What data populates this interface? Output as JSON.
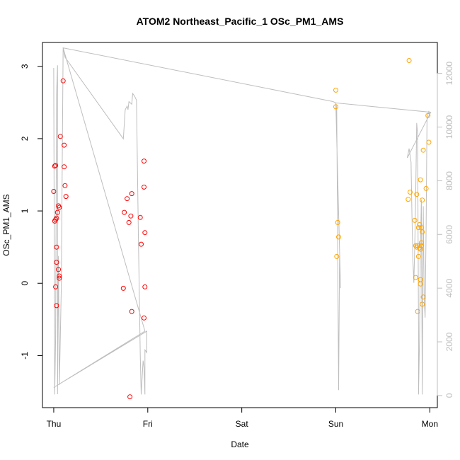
{
  "chart_data": {
    "type": "scatter",
    "title": "ATOM2 Northeast_Pacific_1 OSc_PM1_AMS",
    "xlabel": "Date",
    "ylabel": "OSc_PM1_AMS",
    "xlim": [
      -0.12,
      4.08
    ],
    "ylim": [
      -1.72,
      3.33
    ],
    "x_ticks": [
      {
        "value": 0,
        "label": "Thu"
      },
      {
        "value": 1,
        "label": "Fri"
      },
      {
        "value": 2,
        "label": "Sat"
      },
      {
        "value": 3,
        "label": "Sun"
      },
      {
        "value": 4,
        "label": "Mon"
      }
    ],
    "y_ticks": [
      -1,
      0,
      1,
      2,
      3
    ],
    "y2_ticks": [
      0,
      2000,
      4000,
      6000,
      8000,
      10000,
      12000
    ],
    "y2_lim": [
      -450,
      13150
    ],
    "grid": false,
    "colors": {
      "series_red": "#ff0000",
      "series_orange": "#ffa500",
      "line_gray": "#bebebe",
      "axis": "#000000"
    },
    "series": [
      {
        "color": "#ff0000",
        "points": [
          [
            0.0,
            1.27
          ],
          [
            0.01,
            0.86
          ],
          [
            0.02,
            0.88
          ],
          [
            0.03,
            0.9
          ],
          [
            0.01,
            1.62
          ],
          [
            0.02,
            1.63
          ],
          [
            0.03,
            0.5
          ],
          [
            0.03,
            0.29
          ],
          [
            0.02,
            -0.05
          ],
          [
            0.03,
            -0.31
          ],
          [
            0.04,
            0.98
          ],
          [
            0.05,
            1.07
          ],
          [
            0.06,
            1.05
          ],
          [
            0.05,
            0.19
          ],
          [
            0.06,
            0.1
          ],
          [
            0.06,
            0.07
          ],
          [
            0.07,
            2.03
          ],
          [
            0.1,
            2.8
          ],
          [
            0.11,
            1.91
          ],
          [
            0.11,
            1.61
          ],
          [
            0.12,
            1.35
          ],
          [
            0.13,
            1.2
          ],
          [
            0.75,
            0.98
          ],
          [
            0.74,
            -0.07
          ],
          [
            0.78,
            1.17
          ],
          [
            0.8,
            0.84
          ],
          [
            0.82,
            0.93
          ],
          [
            0.83,
            1.24
          ],
          [
            0.83,
            -0.39
          ],
          [
            0.81,
            -1.57
          ],
          [
            0.92,
            0.91
          ],
          [
            0.93,
            0.54
          ],
          [
            0.96,
            1.69
          ],
          [
            0.96,
            1.33
          ],
          [
            0.97,
            0.7
          ],
          [
            0.97,
            -0.05
          ],
          [
            0.96,
            -0.48
          ]
        ]
      },
      {
        "color": "#ffa500",
        "points": [
          [
            3.0,
            2.67
          ],
          [
            3.0,
            2.44
          ],
          [
            3.02,
            0.84
          ],
          [
            3.03,
            0.64
          ],
          [
            3.01,
            0.37
          ],
          [
            3.77,
            1.16
          ],
          [
            3.78,
            3.08
          ],
          [
            3.79,
            1.26
          ],
          [
            3.84,
            0.87
          ],
          [
            3.85,
            0.52
          ],
          [
            3.86,
            1.23
          ],
          [
            3.86,
            0.5
          ],
          [
            3.87,
            0.52
          ],
          [
            3.85,
            0.08
          ],
          [
            3.87,
            -0.39
          ],
          [
            3.88,
            0.37
          ],
          [
            3.88,
            0.77
          ],
          [
            3.89,
            0.81
          ],
          [
            3.89,
            0.49
          ],
          [
            3.9,
            0.47
          ],
          [
            3.9,
            1.43
          ],
          [
            3.9,
            0.05
          ],
          [
            3.9,
            -0.01
          ],
          [
            3.91,
            0.77
          ],
          [
            3.91,
            0.56
          ],
          [
            3.91,
            0.52
          ],
          [
            3.92,
            1.15
          ],
          [
            3.92,
            0.71
          ],
          [
            3.93,
            1.84
          ],
          [
            3.93,
            -0.19
          ],
          [
            3.92,
            -0.29
          ],
          [
            3.96,
            1.31
          ],
          [
            3.98,
            2.32
          ],
          [
            3.99,
            1.95
          ]
        ]
      }
    ],
    "line_series": {
      "axis": "right",
      "color": "#bebebe",
      "points": [
        [
          0.0,
          12200
        ],
        [
          0.01,
          40
        ],
        [
          0.02,
          2150
        ],
        [
          0.03,
          11200
        ],
        [
          0.04,
          12300
        ],
        [
          0.04,
          50
        ],
        [
          0.05,
          5200
        ],
        [
          0.06,
          400
        ],
        [
          0.08,
          4000
        ],
        [
          0.1,
          12950
        ],
        [
          0.12,
          12600
        ],
        [
          0.74,
          9560
        ],
        [
          0.76,
          10640
        ],
        [
          0.78,
          10780
        ],
        [
          0.79,
          10650
        ],
        [
          0.8,
          10950
        ],
        [
          0.83,
          10850
        ],
        [
          0.84,
          11250
        ],
        [
          0.86,
          11150
        ],
        [
          0.88,
          11000
        ],
        [
          0.9,
          6000
        ],
        [
          0.92,
          1500
        ],
        [
          0.93,
          40
        ],
        [
          0.95,
          1300
        ],
        [
          0.96,
          1050
        ],
        [
          0.97,
          40
        ],
        [
          0.97,
          1700
        ],
        [
          0.99,
          1600
        ],
        [
          0.99,
          2400
        ],
        [
          0.0,
          300
        ],
        [
          0.97,
          2400
        ],
        [
          0.1,
          12950
        ],
        [
          2.97,
          10950
        ],
        [
          3.0,
          10900
        ],
        [
          3.01,
          10700
        ],
        [
          3.03,
          200
        ],
        [
          3.04,
          5200
        ],
        [
          3.05,
          4000
        ],
        [
          3.0,
          10900
        ],
        [
          4.01,
          10550
        ],
        [
          3.76,
          8850
        ],
        [
          3.78,
          9200
        ],
        [
          3.8,
          8700
        ],
        [
          3.81,
          6700
        ],
        [
          3.82,
          5000
        ],
        [
          3.83,
          4200
        ],
        [
          3.84,
          5600
        ],
        [
          3.85,
          7500
        ],
        [
          3.86,
          10150
        ],
        [
          3.87,
          9750
        ],
        [
          3.88,
          2400
        ],
        [
          3.88,
          40
        ],
        [
          3.89,
          2100
        ],
        [
          3.9,
          5600
        ],
        [
          3.91,
          7300
        ],
        [
          3.92,
          40
        ],
        [
          3.93,
          7050
        ],
        [
          3.94,
          3600
        ],
        [
          3.95,
          2900
        ],
        [
          3.96,
          6200
        ],
        [
          3.97,
          10350
        ],
        [
          3.99,
          10600
        ],
        [
          4.0,
          10400
        ]
      ]
    }
  }
}
